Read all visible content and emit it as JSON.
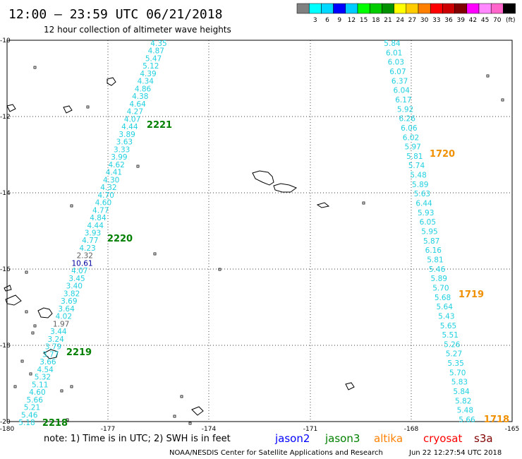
{
  "header": {
    "title": "12:00 – 23:59 UTC 06/21/2018",
    "subtitle": "12 hour collection of altimeter wave heights"
  },
  "legend": {
    "colors": [
      "#808080",
      "#00ffff",
      "#00d8ff",
      "#0000ff",
      "#00ccff",
      "#00ff00",
      "#00cc00",
      "#009000",
      "#ffff00",
      "#ffcc00",
      "#ff8000",
      "#ff0000",
      "#cc0000",
      "#800000",
      "#ff00ff",
      "#ff88ff",
      "#ff66cc",
      "#000000"
    ],
    "labels": [
      "3",
      "6",
      "9",
      "12",
      "15",
      "18",
      "21",
      "24",
      "27",
      "30",
      "33",
      "36",
      "39",
      "42",
      "45",
      "70"
    ],
    "unit": "(ft)"
  },
  "axes": {
    "x_ticks": [
      "-180",
      "-177",
      "-174",
      "-171",
      "-168",
      "-165"
    ],
    "y_ticks": [
      "-10",
      "-12",
      "-14",
      "-16",
      "-18",
      "-20"
    ]
  },
  "wave_colors": {
    "cyan": "#20d0e0",
    "gray": "#606060",
    "navy": "#0000a0",
    "green": "#008000",
    "orange": "#f09000"
  },
  "track_west": [
    [
      "4.35",
      "cyan"
    ],
    [
      "4.87",
      "cyan"
    ],
    [
      "5.47",
      "cyan"
    ],
    [
      "5.12",
      "cyan"
    ],
    [
      "4.39",
      "cyan"
    ],
    [
      "4.34",
      "cyan"
    ],
    [
      "4.86",
      "cyan"
    ],
    [
      "4.38",
      "cyan"
    ],
    [
      "4.64",
      "cyan"
    ],
    [
      "4.27",
      "cyan"
    ],
    [
      "4.07",
      "cyan"
    ],
    [
      "4.44",
      "cyan"
    ],
    [
      "3.89",
      "cyan"
    ],
    [
      "3.63",
      "cyan"
    ],
    [
      "3.33",
      "cyan"
    ],
    [
      "3.99",
      "cyan"
    ],
    [
      "4.62",
      "cyan"
    ],
    [
      "4.41",
      "cyan"
    ],
    [
      "4.30",
      "cyan"
    ],
    [
      "4.32",
      "cyan"
    ],
    [
      "4.70",
      "cyan"
    ],
    [
      "4.60",
      "cyan"
    ],
    [
      "4.77",
      "cyan"
    ],
    [
      "4.84",
      "cyan"
    ],
    [
      "4.44",
      "cyan"
    ],
    [
      "3.93",
      "cyan"
    ],
    [
      "4.77",
      "cyan"
    ],
    [
      "4.23",
      "cyan"
    ],
    [
      "2.32",
      "gray"
    ],
    [
      "10.61",
      "navy"
    ],
    [
      "4.07",
      "cyan"
    ],
    [
      "3.45",
      "cyan"
    ],
    [
      "3.40",
      "cyan"
    ],
    [
      "3.82",
      "cyan"
    ],
    [
      "3.69",
      "cyan"
    ],
    [
      "3.64",
      "cyan"
    ],
    [
      "4.02",
      "cyan"
    ],
    [
      "1.97",
      "gray"
    ],
    [
      "3.44",
      "cyan"
    ],
    [
      "3.24",
      "cyan"
    ],
    [
      "3.79",
      "cyan"
    ],
    [
      "3.77",
      "cyan"
    ],
    [
      "3.66",
      "cyan"
    ],
    [
      "4.54",
      "cyan"
    ],
    [
      "5.32",
      "cyan"
    ],
    [
      "5.11",
      "cyan"
    ],
    [
      "4.60",
      "cyan"
    ],
    [
      "5.66",
      "cyan"
    ],
    [
      "5.21",
      "cyan"
    ],
    [
      "5.46",
      "cyan"
    ],
    [
      "5.18",
      "cyan"
    ]
  ],
  "track_east": [
    [
      "5.84",
      "cyan"
    ],
    [
      "6.01",
      "cyan"
    ],
    [
      "6.03",
      "cyan"
    ],
    [
      "6.07",
      "cyan"
    ],
    [
      "6.37",
      "cyan"
    ],
    [
      "6.04",
      "cyan"
    ],
    [
      "6.17",
      "cyan"
    ],
    [
      "5.92",
      "cyan"
    ],
    [
      "6.26",
      "cyan"
    ],
    [
      "6.06",
      "cyan"
    ],
    [
      "6.02",
      "cyan"
    ],
    [
      "5.97",
      "cyan"
    ],
    [
      "5.81",
      "cyan"
    ],
    [
      "5.74",
      "cyan"
    ],
    [
      "5.48",
      "cyan"
    ],
    [
      "5.89",
      "cyan"
    ],
    [
      "5.63",
      "cyan"
    ],
    [
      "6.44",
      "cyan"
    ],
    [
      "5.93",
      "cyan"
    ],
    [
      "6.05",
      "cyan"
    ],
    [
      "5.95",
      "cyan"
    ],
    [
      "5.87",
      "cyan"
    ],
    [
      "6.16",
      "cyan"
    ],
    [
      "5.81",
      "cyan"
    ],
    [
      "5.46",
      "cyan"
    ],
    [
      "5.89",
      "cyan"
    ],
    [
      "5.70",
      "cyan"
    ],
    [
      "5.68",
      "cyan"
    ],
    [
      "5.64",
      "cyan"
    ],
    [
      "5.43",
      "cyan"
    ],
    [
      "5.65",
      "cyan"
    ],
    [
      "5.51",
      "cyan"
    ],
    [
      "5.26",
      "cyan"
    ],
    [
      "5.27",
      "cyan"
    ],
    [
      "5.35",
      "cyan"
    ],
    [
      "5.70",
      "cyan"
    ],
    [
      "5.83",
      "cyan"
    ],
    [
      "5.84",
      "cyan"
    ],
    [
      "5.82",
      "cyan"
    ],
    [
      "5.48",
      "cyan"
    ],
    [
      "5.66",
      "cyan"
    ]
  ],
  "time_labels": [
    {
      "text": "2221",
      "color": "green"
    },
    {
      "text": "2220",
      "color": "green"
    },
    {
      "text": "2219",
      "color": "green"
    },
    {
      "text": "2218",
      "color": "green"
    },
    {
      "text": "1720",
      "color": "orange"
    },
    {
      "text": "1719",
      "color": "orange"
    },
    {
      "text": "1718",
      "color": "orange"
    }
  ],
  "footer": {
    "note": "note: 1) Time is in UTC; 2) SWH is in feet",
    "credit": "NOAA/NESDIS Center for Satellite Applications and Research",
    "timestamp": "Jun 22 12:27:54 UTC 2018",
    "satellites": [
      {
        "name": "jason2",
        "color": "#0000ff"
      },
      {
        "name": "jason3",
        "color": "#008000"
      },
      {
        "name": "altika",
        "color": "#ff8000"
      },
      {
        "name": "cryosat",
        "color": "#ff0000"
      },
      {
        "name": "s3a",
        "color": "#800000"
      }
    ]
  }
}
